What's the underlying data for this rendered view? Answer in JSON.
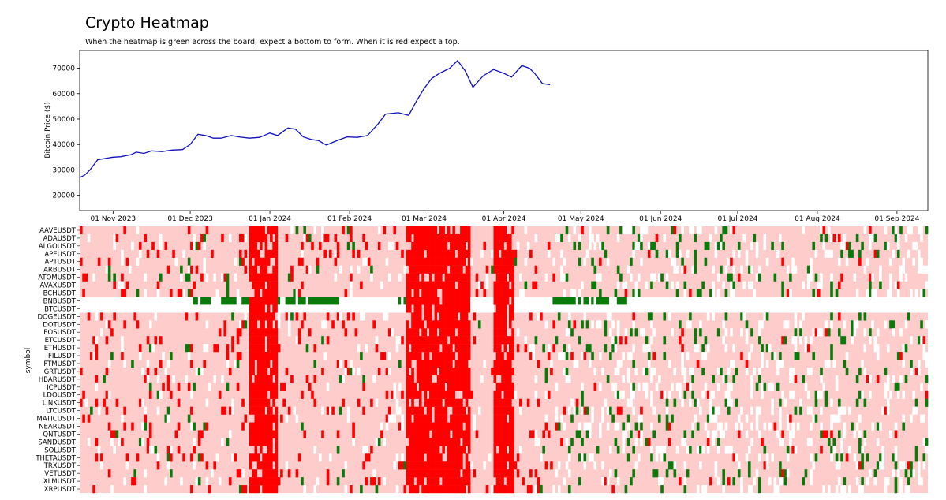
{
  "header": {
    "title": "Crypto Heatmap",
    "subtitle": "When the heatmap is green across the board, expect a bottom to form. When it is red expect a top."
  },
  "colors": {
    "line": "#1010b8",
    "strong_red": "#ff0000",
    "light_red": "#ffcccc",
    "white": "#ffffff",
    "green": "#0a7a0a"
  },
  "chart_data": [
    {
      "type": "line",
      "title": "",
      "xlabel": "",
      "ylabel": "Bitcoin Price ($)",
      "x_range": [
        "2023-10-19",
        "2024-09-13"
      ],
      "ylim": [
        14000,
        77000
      ],
      "yticks": [
        20000,
        30000,
        40000,
        50000,
        60000,
        70000
      ],
      "ytick_labels": [
        "20000",
        "30000",
        "40000",
        "50000",
        "60000",
        "70000"
      ],
      "xticks": [
        "2023-11-01",
        "2023-12-01",
        "2024-01-01",
        "2024-02-01",
        "2024-03-01",
        "2024-04-01",
        "2024-05-01",
        "2024-06-01",
        "2024-07-01",
        "2024-08-01",
        "2024-09-01"
      ],
      "xtick_labels": [
        "01 Nov 2023",
        "01 Dec 2023",
        "01 Jan 2024",
        "01 Feb 2024",
        "01 Mar 2024",
        "01 Apr 2024",
        "01 May 2024",
        "01 Jun 2024",
        "01 Jul 2024",
        "01 Aug 2024",
        "01 Sep 2024"
      ],
      "grid": false,
      "series": [
        {
          "x": [
            "2023-10-19",
            "2023-10-21",
            "2023-10-23",
            "2023-10-26",
            "2023-10-29",
            "2023-11-01",
            "2023-11-04",
            "2023-11-08",
            "2023-11-10",
            "2023-11-13",
            "2023-11-16",
            "2023-11-20",
            "2023-11-24",
            "2023-11-28",
            "2023-12-01",
            "2023-12-04",
            "2023-12-07",
            "2023-12-10",
            "2023-12-13",
            "2023-12-17",
            "2023-12-20",
            "2023-12-24",
            "2023-12-28",
            "2024-01-01",
            "2024-01-04",
            "2024-01-08",
            "2024-01-11",
            "2024-01-14",
            "2024-01-17",
            "2024-01-20",
            "2024-01-23",
            "2024-01-27",
            "2024-01-31",
            "2024-02-04",
            "2024-02-08",
            "2024-02-12",
            "2024-02-15",
            "2024-02-20",
            "2024-02-24",
            "2024-02-27",
            "2024-03-01",
            "2024-03-04",
            "2024-03-07",
            "2024-03-11",
            "2024-03-14",
            "2024-03-17",
            "2024-03-20",
            "2024-03-24",
            "2024-03-28",
            "2024-04-01",
            "2024-04-04",
            "2024-04-08",
            "2024-04-11",
            "2024-04-13",
            "2024-04-16",
            "2024-04-19"
          ],
          "y": [
            27000,
            28000,
            30000,
            34000,
            34500,
            35000,
            35200,
            36000,
            37000,
            36500,
            37500,
            37200,
            37800,
            38000,
            40000,
            44000,
            43500,
            42500,
            42500,
            43500,
            43000,
            42500,
            42800,
            44500,
            43500,
            46500,
            46000,
            43000,
            42000,
            41500,
            39800,
            41500,
            43000,
            42800,
            43500,
            48000,
            52000,
            52500,
            51500,
            57000,
            62000,
            66000,
            68000,
            70000,
            73000,
            69000,
            62500,
            67000,
            69500,
            68000,
            66500,
            71000,
            70000,
            68000,
            64000,
            63500
          ]
        }
      ]
    },
    {
      "type": "heatmap",
      "ylabel": "symbol",
      "x_range": [
        "2023-10-19",
        "2024-09-13"
      ],
      "rows": [
        "AAVEUSDT",
        "ADAUSDT",
        "ALGOUSDT",
        "APEUSDT",
        "APTUSDT",
        "ARBUSDT",
        "ATOMUSDT",
        "AVAXUSDT",
        "BCHUSDT",
        "BNBUSDT",
        "BTCUSDT",
        "DOGEUSDT",
        "DOTUSDT",
        "EOSUSDT",
        "ETCUSDT",
        "ETHUSDT",
        "FILUSDT",
        "FTMUSDT",
        "GRTUSDT",
        "HBARUSDT",
        "ICPUSDT",
        "LDOUSDT",
        "LINKUSDT",
        "LTCUSDT",
        "MATICUSDT",
        "NEARUSDT",
        "QNTUSDT",
        "SANDUSDT",
        "SOLUSDT",
        "THETAUSDT",
        "TRXUSDT",
        "VETUSDT",
        "XLMUSDT",
        "XRPUSDT"
      ],
      "red_periods": [
        {
          "start": "2023-12-24",
          "end": "2024-01-03"
        },
        {
          "start": "2024-02-23",
          "end": "2024-03-18"
        },
        {
          "start": "2024-03-28",
          "end": "2024-04-04"
        }
      ],
      "bnb_green_periods": [
        {
          "start": "2023-12-02",
          "end": "2023-12-23"
        },
        {
          "start": "2024-01-04",
          "end": "2024-01-28"
        },
        {
          "start": "2024-02-20",
          "end": "2024-02-28"
        },
        {
          "start": "2024-04-20",
          "end": "2024-05-18"
        }
      ]
    }
  ]
}
